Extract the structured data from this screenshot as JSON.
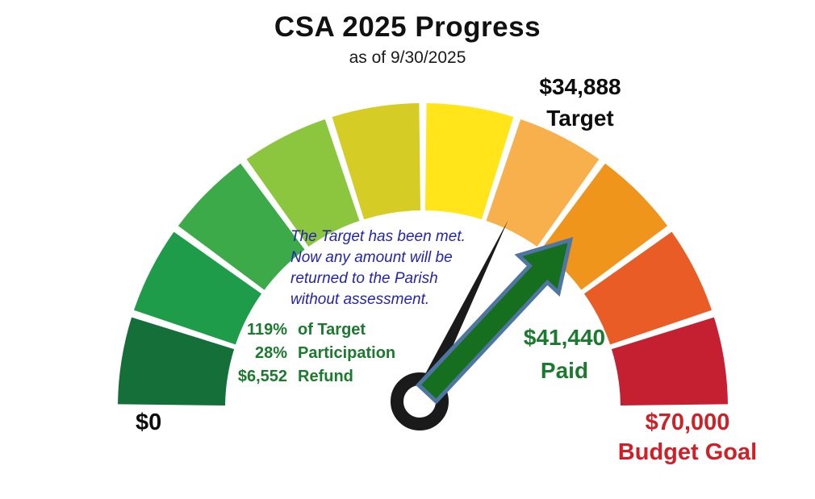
{
  "header": {
    "title": "CSA 2025 Progress",
    "subtitle": "as of 9/30/2025"
  },
  "labels": {
    "target_amount": "$34,888",
    "target_caption": "Target",
    "paid_amount": "$41,440",
    "paid_caption": "Paid",
    "min_label": "$0",
    "goal_amount": "$70,000",
    "goal_caption": "Budget Goal"
  },
  "annotation": {
    "text": "The Target has been met.\nNow any amount will be\nreturned to the Parish\nwithout assessment."
  },
  "stats": {
    "rows": [
      {
        "value": "119%",
        "label": "of Target"
      },
      {
        "value": "28%",
        "label": "Participation"
      },
      {
        "value": "$6,552",
        "label": "Refund"
      }
    ]
  },
  "colors": {
    "title_text": "#111111",
    "annotation_text": "#2424ad",
    "stats_text": "#1b7a2e",
    "paid_text": "#1b7a2e",
    "goal_text": "#cf2027",
    "needle": "#1a1a1a",
    "arrow_fill": "#156f1e",
    "arrow_outline": "#4f76a3",
    "hub_ring": "#1a1a1a",
    "background": "#ffffff"
  },
  "chart_data": {
    "type": "gauge",
    "title": "CSA 2025 Progress",
    "subtitle": "as of 9/30/2025",
    "min": 0,
    "max": 70000,
    "min_label": "$0",
    "max_label": "$70,000 Budget Goal",
    "target_value": 34888,
    "target_label": "$34,888 Target",
    "paid_value": 41440,
    "paid_label": "$41,440 Paid",
    "percent_of_target": 119,
    "participation_percent": 28,
    "refund_value": 6552,
    "annotation": "The Target has been met. Now any amount will be returned to the Parish without assessment.",
    "start_angle_deg": 180,
    "end_angle_deg": 0,
    "segment_count": 10,
    "segment_value_each": 7000,
    "segment_colors": [
      "#156f39",
      "#1f9c49",
      "#3caa48",
      "#8cc63f",
      "#d5cd26",
      "#ffe51a",
      "#f7b04c",
      "#f0951c",
      "#e95c25",
      "#c42031"
    ],
    "needle": {
      "style": "thin-black",
      "angle_deg": 64,
      "color": "#1a1a1a"
    },
    "arrow": {
      "style": "block-arrow",
      "angle_deg": 47,
      "fill": "#156f1e",
      "outline": "#4f76a3"
    }
  }
}
